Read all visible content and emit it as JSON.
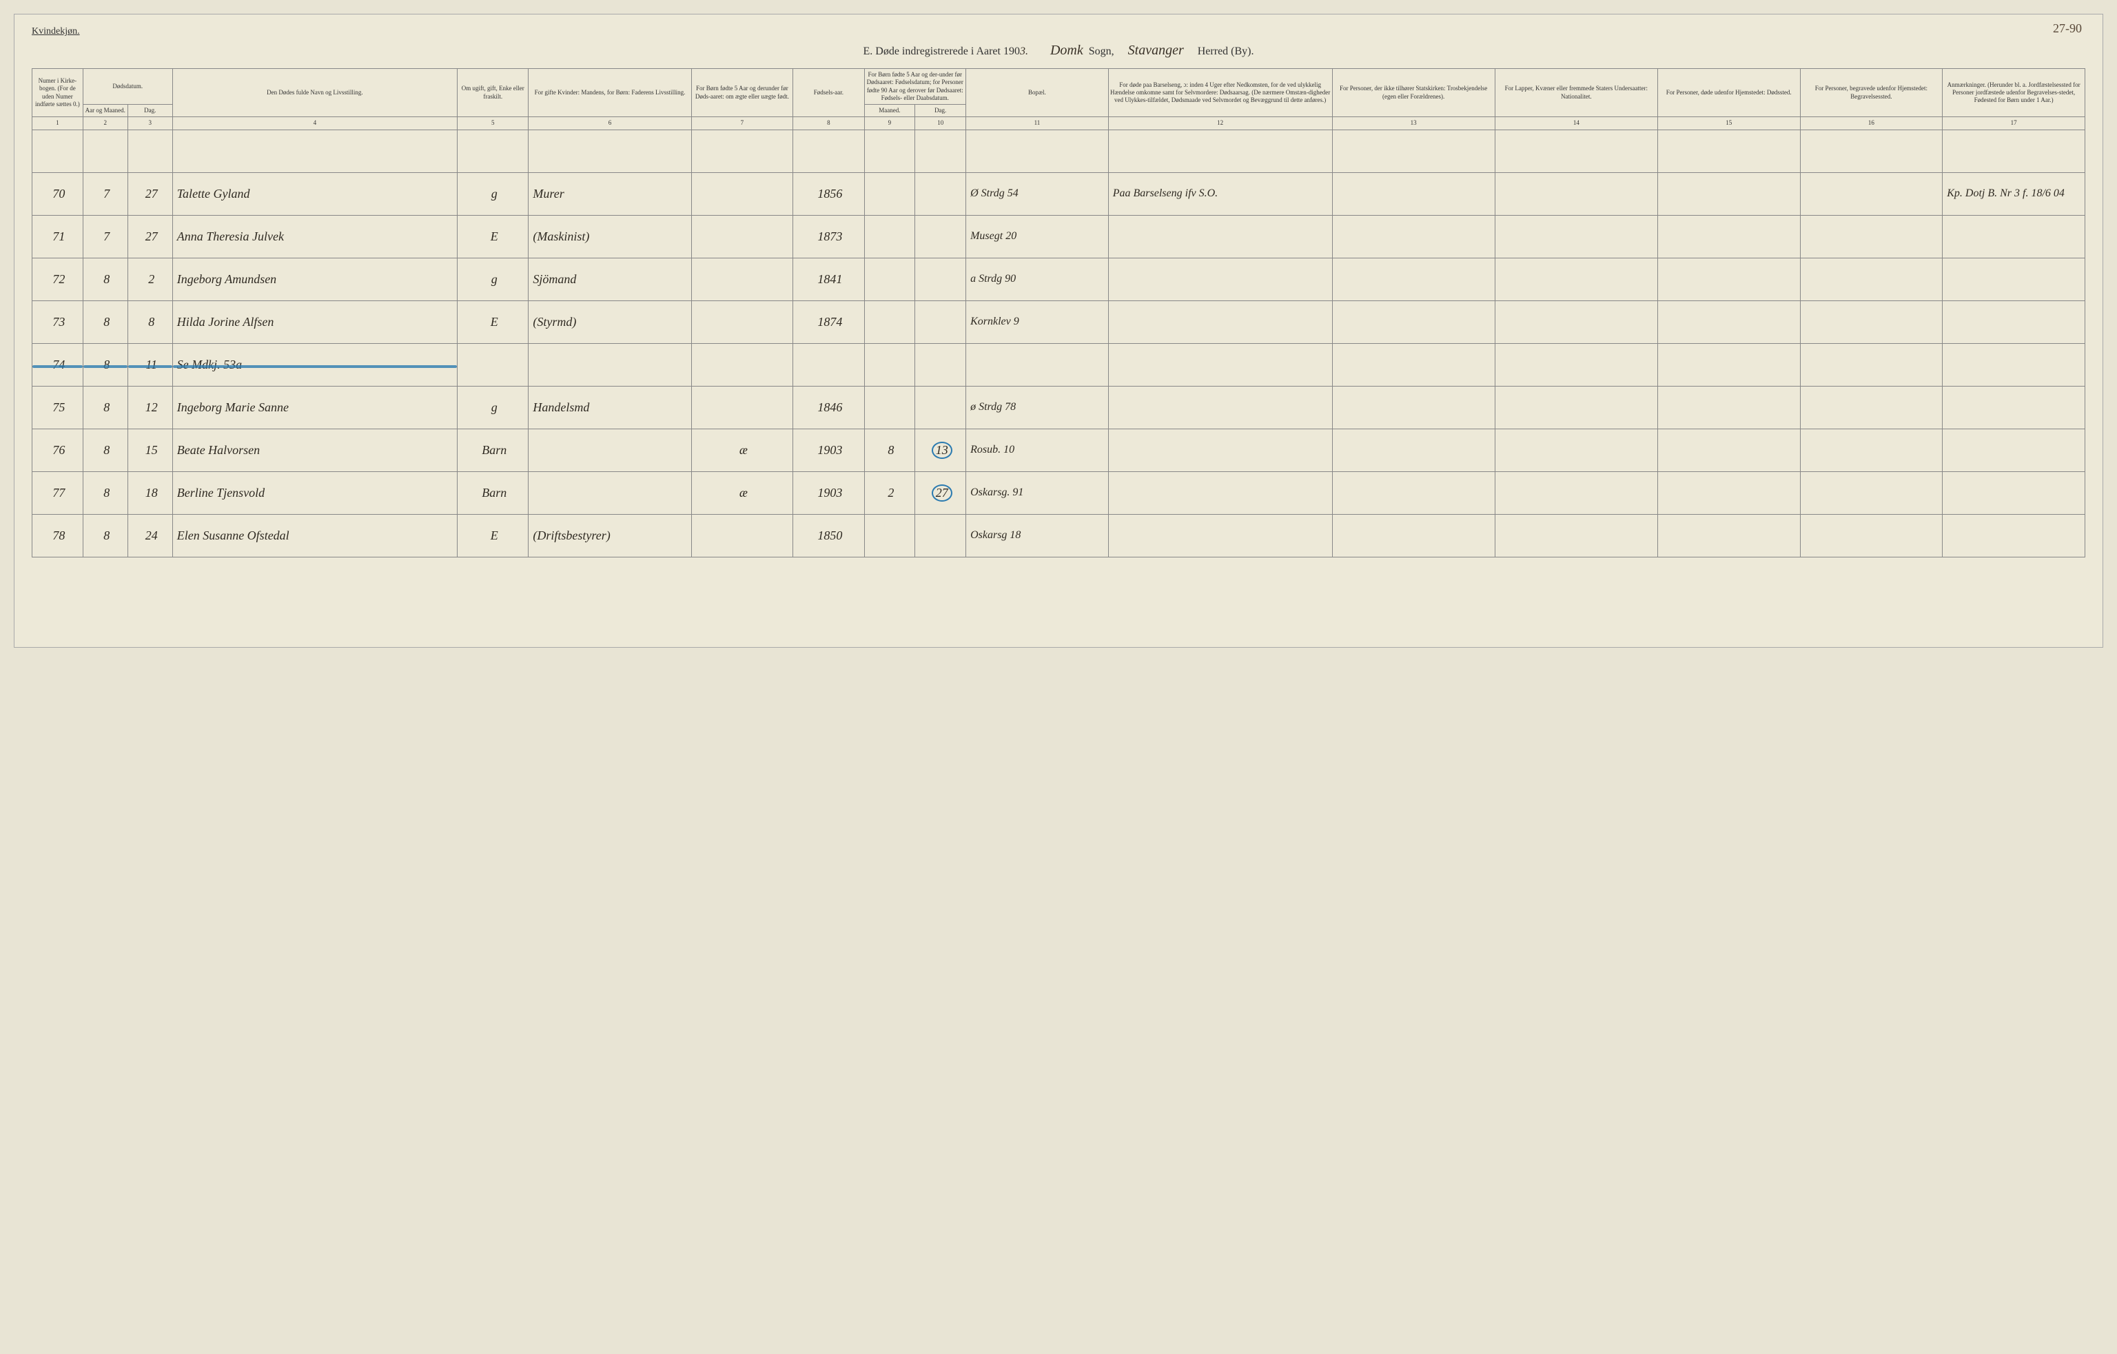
{
  "page": {
    "corner_number": "27-90",
    "gender": "Kvindekjøn.",
    "title_prefix": "E.   Døde indregistrerede i Aaret 190",
    "year_suffix": "3.",
    "sogn_hand": "Domk",
    "sogn_label": "Sogn,",
    "herred_hand": "Stavanger",
    "herred_label": "Herred (By)."
  },
  "headers": {
    "c1": "Numer i Kirke-bogen. (For de uden Numer indførte sættes 0.)",
    "c2_3_top": "Dødsdatum.",
    "c2": "Aar og Maaned.",
    "c3": "Dag.",
    "c4": "Den Dødes fulde Navn og Livsstilling.",
    "c5": "Om ugift, gift, Enke eller fraskilt.",
    "c6": "For gifte Kvinder: Mandens, for Børn: Faderens Livsstilling.",
    "c7": "For Børn fødte 5 Aar og derunder før Døds-aaret: om ægte eller uægte født.",
    "c8": "Fødsels-aar.",
    "c9_10_top": "For Børn fødte 5 Aar og der-under før Dødsaaret: Fødselsdatum; for Personer fødte 90 Aar og derover før Dødsaaret: Fødsels- eller Daabsdatum.",
    "c9": "Maaned.",
    "c10": "Dag.",
    "c11": "Bopæl.",
    "c12": "For døde paa Barselseng, ɔ: inden 4 Uger efter Nedkomsten, for de ved ulykkelig Hændelse omkomne samt for Selvmordere: Dødsaarsag. (De nærmere Omstæn-digheder ved Ulykkes-tilfældet, Dødsmaade ved Selvmordet og Bevæggrund til dette anføres.)",
    "c13": "For Personer, der ikke tilhører Statskirken: Trosbekjendelse (egen eller Forældrenes).",
    "c14": "For Lapper, Kvæner eller fremmede Staters Undersaatter: Nationalitet.",
    "c15": "For Personer, døde udenfor Hjemstedet: Dødssted.",
    "c16": "For Personer, begravede udenfor Hjemstedet: Begravelsessted.",
    "c17": "Anmærkninger. (Herunder bl. a. Jordfæstelsessted for Personer jordfæstede udenfor Begravelses-stedet, Fødested for Børn under 1 Aar.)"
  },
  "colnums": [
    "1",
    "2",
    "3",
    "4",
    "5",
    "6",
    "7",
    "8",
    "9",
    "10",
    "11",
    "12",
    "13",
    "14",
    "15",
    "16",
    "17"
  ],
  "rows": [
    {
      "n": "70",
      "m": "7",
      "d": "27",
      "name": "Talette Gyland",
      "status": "g",
      "occ": "Murer",
      "c7": "",
      "yr": "1856",
      "c9": "",
      "c10": "",
      "addr": "Ø Strdg 54",
      "cause": "Paa Barselseng ifv S.O.",
      "note": "Kp. Dotj B. Nr 3 f. 18/6 04"
    },
    {
      "n": "71",
      "m": "7",
      "d": "27",
      "name": "Anna Theresia Julvek",
      "status": "E",
      "occ": "(Maskinist)",
      "c7": "",
      "yr": "1873",
      "c9": "",
      "c10": "",
      "addr": "Musegt 20",
      "cause": "",
      "note": ""
    },
    {
      "n": "72",
      "m": "8",
      "d": "2",
      "name": "Ingeborg Amundsen",
      "status": "g",
      "occ": "Sjömand",
      "c7": "",
      "yr": "1841",
      "c9": "",
      "c10": "",
      "addr": "a Strdg 90",
      "cause": "",
      "note": ""
    },
    {
      "n": "73",
      "m": "8",
      "d": "8",
      "name": "Hilda Jorine Alfsen",
      "status": "E",
      "occ": "(Styrmd)",
      "c7": "",
      "yr": "1874",
      "c9": "",
      "c10": "",
      "addr": "Kornklev 9",
      "cause": "",
      "note": ""
    },
    {
      "n": "74",
      "m": "8",
      "d": "11",
      "name": "Se Mdkj. 53a",
      "status": "",
      "occ": "",
      "c7": "",
      "yr": "",
      "c9": "",
      "c10": "",
      "addr": "",
      "cause": "",
      "note": "",
      "struck": true
    },
    {
      "n": "75",
      "m": "8",
      "d": "12",
      "name": "Ingeborg Marie Sanne",
      "status": "g",
      "occ": "Handelsmd",
      "c7": "",
      "yr": "1846",
      "c9": "",
      "c10": "",
      "addr": "ø Strdg 78",
      "cause": "",
      "note": ""
    },
    {
      "n": "76",
      "m": "8",
      "d": "15",
      "name": "Beate Halvorsen",
      "status": "Barn",
      "occ": "",
      "c7": "æ",
      "yr": "1903",
      "c9": "8",
      "c10": "13",
      "addr": "Rosub. 10",
      "cause": "",
      "note": "",
      "circled10": true
    },
    {
      "n": "77",
      "m": "8",
      "d": "18",
      "name": "Berline Tjensvold",
      "status": "Barn",
      "occ": "",
      "c7": "æ",
      "yr": "1903",
      "c9": "2",
      "c10": "27",
      "addr": "Oskarsg. 91",
      "cause": "",
      "note": "",
      "circled10": true
    },
    {
      "n": "78",
      "m": "8",
      "d": "24",
      "name": "Elen Susanne Ofstedal",
      "status": "E",
      "occ": "(Driftsbestyrer)",
      "c7": "",
      "yr": "1850",
      "c9": "",
      "c10": "",
      "addr": "Oskarsg 18",
      "cause": "",
      "note": ""
    }
  ],
  "colors": {
    "paper": "#ede9d8",
    "ink": "#2f2a22",
    "purple": "#7a3aa0",
    "blue": "#2a7ab0",
    "rule": "#888888"
  }
}
